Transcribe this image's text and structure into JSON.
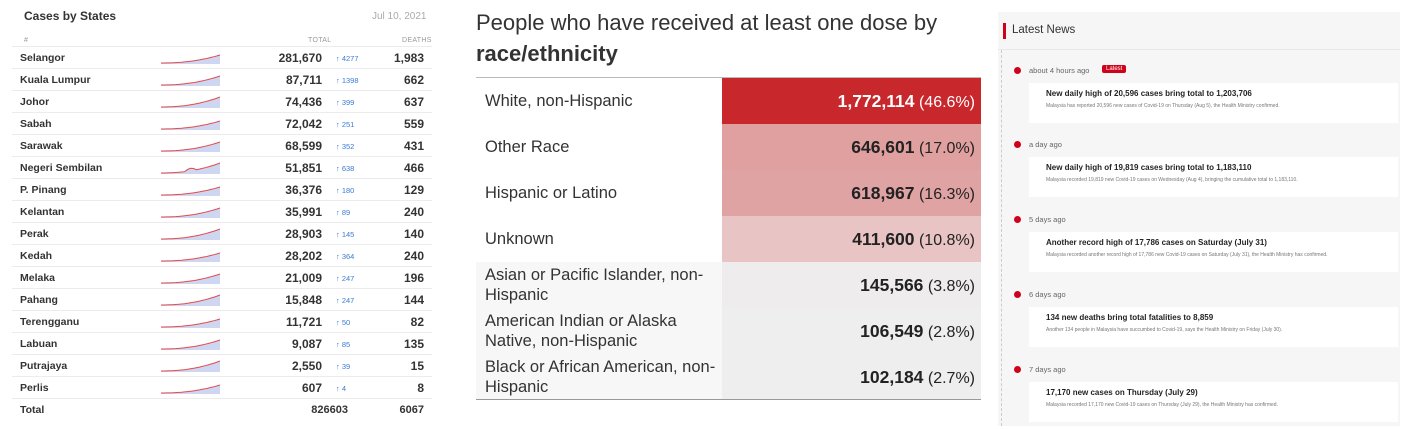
{
  "cases": {
    "title": "Cases by States",
    "date": "Jul 10, 2021",
    "columns": {
      "hash": "#",
      "total": "TOTAL",
      "deaths": "DEATHS"
    },
    "rows": [
      {
        "state": "Selangor",
        "total": "281,670",
        "increase": "4277",
        "deaths": "1,983"
      },
      {
        "state": "Kuala Lumpur",
        "total": "87,711",
        "increase": "1398",
        "deaths": "662"
      },
      {
        "state": "Johor",
        "total": "74,436",
        "increase": "399",
        "deaths": "637"
      },
      {
        "state": "Sabah",
        "total": "72,042",
        "increase": "251",
        "deaths": "559"
      },
      {
        "state": "Sarawak",
        "total": "68,599",
        "increase": "352",
        "deaths": "431"
      },
      {
        "state": "Negeri Sembilan",
        "total": "51,851",
        "increase": "638",
        "deaths": "466"
      },
      {
        "state": "P. Pinang",
        "total": "36,376",
        "increase": "180",
        "deaths": "129"
      },
      {
        "state": "Kelantan",
        "total": "35,991",
        "increase": "89",
        "deaths": "240"
      },
      {
        "state": "Perak",
        "total": "28,903",
        "increase": "145",
        "deaths": "140"
      },
      {
        "state": "Kedah",
        "total": "28,202",
        "increase": "364",
        "deaths": "240"
      },
      {
        "state": "Melaka",
        "total": "21,009",
        "increase": "247",
        "deaths": "196"
      },
      {
        "state": "Pahang",
        "total": "15,848",
        "increase": "247",
        "deaths": "144"
      },
      {
        "state": "Terengganu",
        "total": "11,721",
        "increase": "50",
        "deaths": "82"
      },
      {
        "state": "Labuan",
        "total": "9,087",
        "increase": "85",
        "deaths": "135"
      },
      {
        "state": "Putrajaya",
        "total": "2,550",
        "increase": "39",
        "deaths": "15"
      },
      {
        "state": "Perlis",
        "total": "607",
        "increase": "4",
        "deaths": "8"
      }
    ],
    "total": {
      "label": "Total",
      "cases": "826603",
      "deaths": "6067"
    },
    "sparkline_color": "#e14b4b",
    "sparkline_fill": "#cfd6f2",
    "increase_color": "#3a7bd5"
  },
  "vaccine": {
    "title_line1": "People who have received at least one dose by",
    "title_line2": "race/ethnicity",
    "rows": [
      {
        "label": "White, non-Hispanic",
        "value": "1,772,114",
        "percent": "(46.6%)",
        "share": 46.6,
        "bg": "#c8272c",
        "text_color": "#ffffff",
        "label_bg": "#ffffff"
      },
      {
        "label": "Other Race",
        "value": "646,601",
        "percent": "(17.0%)",
        "share": 17.0,
        "bg": "#e0a0a0",
        "text_color": "#222222",
        "label_bg": "#ffffff"
      },
      {
        "label": "Hispanic or Latino",
        "value": "618,967",
        "percent": "(16.3%)",
        "share": 16.3,
        "bg": "#e0a3a3",
        "text_color": "#222222",
        "label_bg": "#ffffff"
      },
      {
        "label": "Unknown",
        "value": "411,600",
        "percent": "(10.8%)",
        "share": 10.8,
        "bg": "#e8c4c4",
        "text_color": "#222222",
        "label_bg": "#ffffff"
      },
      {
        "label": "Asian or Pacific Islander, non-Hispanic",
        "value": "145,566",
        "percent": "(3.8%)",
        "share": 3.8,
        "bg": "#eeecec",
        "text_color": "#222222",
        "label_bg": "#f7f7f7"
      },
      {
        "label": "American Indian or Alaska Native, non-Hispanic",
        "value": "106,549",
        "percent": "(2.8%)",
        "share": 2.8,
        "bg": "#eeeeee",
        "text_color": "#222222",
        "label_bg": "#f7f7f7"
      },
      {
        "label": "Black or African American, non-Hispanic",
        "value": "102,184",
        "percent": "(2.7%)",
        "share": 2.7,
        "bg": "#eeeeee",
        "text_color": "#222222",
        "label_bg": "#f7f7f7"
      }
    ]
  },
  "news": {
    "title": "Latest News",
    "accent": "#d0021b",
    "badge": "Latest",
    "items": [
      {
        "time": "about 4 hours ago",
        "headline": "New daily high of 20,596 cases bring total to 1,203,706",
        "summary": "Malaysia has reported 20,596 new cases of Covid-19 on Thursday (Aug 5), the Health Ministry confirmed."
      },
      {
        "time": "a day ago",
        "headline": "New daily high of 19,819 cases bring total to 1,183,110",
        "summary": "Malaysia recorded 19,819 new Covid-19 cases on Wednesday (Aug 4), bringing the cumulative total to 1,183,110."
      },
      {
        "time": "5 days ago",
        "headline": "Another record high of 17,786 cases on Saturday (July 31)",
        "summary": "Malaysia recorded another record high of 17,786 new Covid-19 cases on Saturday (July 31), the Health Ministry has confirmed."
      },
      {
        "time": "6 days ago",
        "headline": "134 new deaths bring total fatalities to 8,859",
        "summary": "Another 134 people in Malaysia have succumbed to Covid-19, says the Health Ministry on Friday (July 30)."
      },
      {
        "time": "7 days ago",
        "headline": "17,170 new cases on Thursday (July 29)",
        "summary": "Malaysia recorded 17,170 new Covid-19 cases on Thursday (July 29), the Health Ministry has confirmed."
      }
    ]
  }
}
